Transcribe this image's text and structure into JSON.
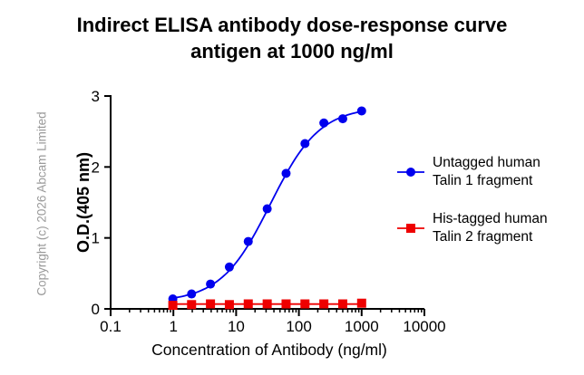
{
  "chart_data": {
    "type": "line",
    "title": "Indirect ELISA antibody dose-response curve",
    "subtitle": "antigen at 1000 ng/ml",
    "xlabel": "Concentration of Antibody (ng/ml)",
    "ylabel": "O.D.(405 nm)",
    "x_scale": "log",
    "xlim": [
      0.1,
      10000
    ],
    "ylim": [
      0,
      3
    ],
    "x_ticks": [
      "0.1",
      "1",
      "10",
      "100",
      "1000",
      "10000"
    ],
    "y_ticks": [
      "0",
      "1",
      "2",
      "3"
    ],
    "grid": false,
    "legend_position": "right",
    "series": [
      {
        "name": "Untagged human Talin 1 fragment",
        "legend_lines": [
          "Untagged human",
          "Talin 1 fragment"
        ],
        "color": "#0000ee",
        "marker": "circle",
        "x": [
          0.98,
          1.95,
          3.9,
          7.8,
          15.6,
          31.25,
          62.5,
          125,
          250,
          500,
          1000
        ],
        "y": [
          0.14,
          0.21,
          0.35,
          0.59,
          0.95,
          1.41,
          1.91,
          2.33,
          2.62,
          2.68,
          2.79
        ],
        "fit": {
          "bottom": 0.1,
          "top": 2.85,
          "ec50": 35,
          "hill": 1.1
        }
      },
      {
        "name": "His-tagged human Talin 2 fragment",
        "legend_lines": [
          "His-tagged human",
          "Talin 2 fragment"
        ],
        "color": "#ee0000",
        "marker": "square",
        "x": [
          0.98,
          1.95,
          3.9,
          7.8,
          15.6,
          31.25,
          62.5,
          125,
          250,
          500,
          1000
        ],
        "y": [
          0.05,
          0.06,
          0.07,
          0.06,
          0.07,
          0.07,
          0.07,
          0.07,
          0.07,
          0.07,
          0.08
        ]
      }
    ]
  },
  "watermark": "Copyright (c) 2026 Abcam Limited"
}
